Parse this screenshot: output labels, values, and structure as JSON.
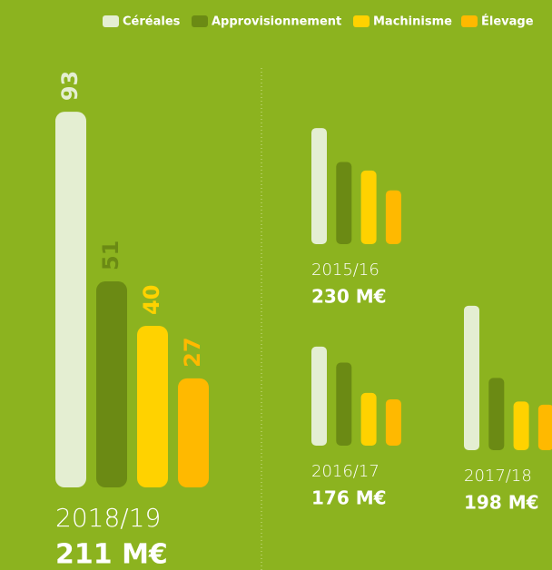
{
  "legend": [
    {
      "name": "Céréales",
      "color": "#e4eed2"
    },
    {
      "name": "Approvisionnement",
      "color": "#6b8a14"
    },
    {
      "name": "Machinisme",
      "color": "#ffd200"
    },
    {
      "name": "Élevage",
      "color": "#ffb900"
    }
  ],
  "chart_data": [
    {
      "type": "bar",
      "title": "2018/19",
      "subtitle": "211 M€",
      "categories": [
        "Céréales",
        "Approvisionnement",
        "Machinisme",
        "Élevage"
      ],
      "values": [
        93,
        51,
        40,
        27
      ],
      "colors": [
        "#e4eed2",
        "#6b8a14",
        "#ffd200",
        "#ffb900"
      ],
      "show_values": true
    },
    {
      "type": "bar",
      "title": "2015/16",
      "subtitle": "230 M€",
      "categories": [
        "Céréales",
        "Approvisionnement",
        "Machinisme",
        "Élevage"
      ],
      "values": [
        82,
        58,
        52,
        38
      ],
      "colors": [
        "#e4eed2",
        "#6b8a14",
        "#ffd200",
        "#ffb900"
      ],
      "show_values": false
    },
    {
      "type": "bar",
      "title": "2016/17",
      "subtitle": "176 M€",
      "categories": [
        "Céréales",
        "Approvisionnement",
        "Machinisme",
        "Élevage"
      ],
      "values": [
        62,
        52,
        33,
        29
      ],
      "colors": [
        "#e4eed2",
        "#6b8a14",
        "#ffd200",
        "#ffb900"
      ],
      "show_values": false
    },
    {
      "type": "bar",
      "title": "2017/18",
      "subtitle": "198 M€",
      "categories": [
        "Céréales",
        "Approvisionnement",
        "Machinisme",
        "Élevage"
      ],
      "values": [
        92,
        46,
        31,
        29
      ],
      "colors": [
        "#e4eed2",
        "#6b8a14",
        "#ffd200",
        "#ffb900"
      ],
      "show_values": false
    }
  ]
}
